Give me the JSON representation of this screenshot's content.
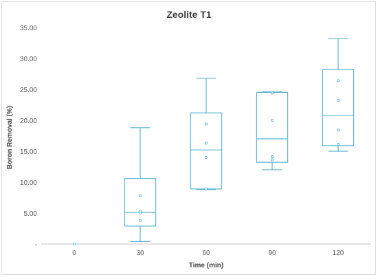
{
  "chart_data": {
    "type": "box",
    "title": "Zeolite T1",
    "xlabel": "Time (min)",
    "ylabel": "Boron Removal (%)",
    "ylim": [
      0,
      35
    ],
    "y_ticks": [
      "-",
      "5.00",
      "10.00",
      "15.00",
      "20.00",
      "25.00",
      "30.00",
      "35.00"
    ],
    "categories": [
      "0",
      "30",
      "60",
      "90",
      "120"
    ],
    "grid": false,
    "legend": "none",
    "colors": {
      "box": "#5ab4d6",
      "axis": "#bfbfbf"
    },
    "boxes": [
      {
        "category": "0",
        "min": 0,
        "q1": 0,
        "median": 0,
        "q3": 0,
        "max": 0,
        "points": [
          0
        ]
      },
      {
        "category": "30",
        "min": 0.4,
        "q1": 2.9,
        "median": 5.1,
        "q3": 10.6,
        "max": 18.8,
        "points": [
          3.8,
          5.0,
          5.3,
          7.8
        ]
      },
      {
        "category": "60",
        "min": 8.8,
        "q1": 8.9,
        "median": 15.2,
        "q3": 21.2,
        "max": 26.8,
        "points": [
          8.9,
          14.0,
          16.3,
          19.4
        ]
      },
      {
        "category": "90",
        "min": 12.0,
        "q1": 13.2,
        "median": 17.0,
        "q3": 24.5,
        "max": 24.6,
        "points": [
          13.6,
          14.1,
          20.0,
          24.4
        ]
      },
      {
        "category": "120",
        "min": 15.0,
        "q1": 15.9,
        "median": 20.8,
        "q3": 28.2,
        "max": 33.2,
        "points": [
          16.1,
          18.4,
          23.2,
          26.4
        ]
      }
    ]
  }
}
